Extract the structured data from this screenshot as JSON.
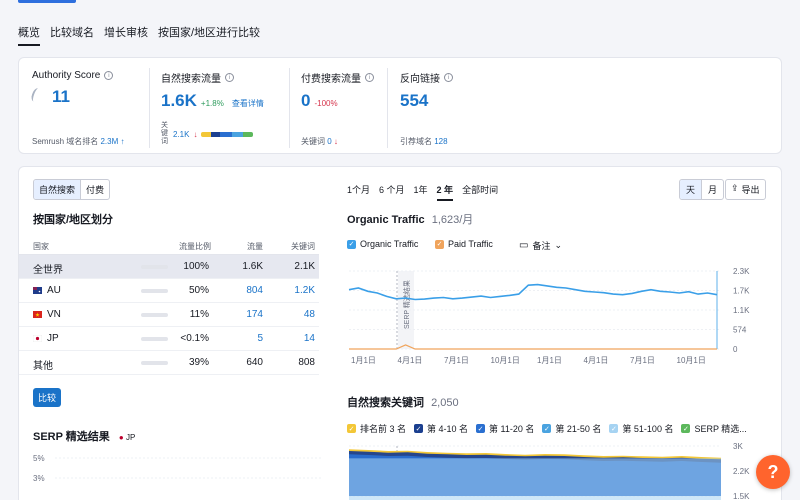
{
  "tabs": [
    "概览",
    "比较域名",
    "增长审核",
    "按国家/地区进行比较"
  ],
  "metrics": {
    "authority": {
      "label": "Authority Score",
      "value": "11",
      "foot_label": "Semrush 域名排名",
      "foot_value": "2.3M",
      "foot_arrow": "↑"
    },
    "organic": {
      "label": "自然搜索流量",
      "value": "1.6K",
      "delta": "+1.8%",
      "link": "查看详情",
      "kw_label": "关键词",
      "kw_value": "2.1K",
      "kw_arrow": "↓"
    },
    "paid": {
      "label": "付费搜索流量",
      "value": "0",
      "delta": "-100%",
      "foot_label": "关键词",
      "foot_value": "0",
      "foot_arrow": "↓"
    },
    "backlinks": {
      "label": "反向链接",
      "value": "554",
      "foot_label": "引荐域名",
      "foot_value": "128"
    }
  },
  "traffic_toggle": {
    "organic": "自然搜索",
    "paid": "付费"
  },
  "by_country_title": "按国家/地区划分",
  "table": {
    "headers": {
      "country": "国家",
      "share": "流量比例",
      "traffic": "流量",
      "keywords": "关键词"
    },
    "rows": [
      {
        "country": "全世界",
        "share": "100%",
        "share_value": 100,
        "traffic": "1.6K",
        "keywords": "2.1K"
      },
      {
        "country": "AU",
        "share": "50%",
        "share_value": 50,
        "traffic": "804",
        "keywords": "1.2K"
      },
      {
        "country": "VN",
        "share": "11%",
        "share_value": 11,
        "traffic": "174",
        "keywords": "48"
      },
      {
        "country": "JP",
        "share": "<0.1%",
        "share_value": 0.1,
        "traffic": "5",
        "keywords": "14"
      },
      {
        "country": "其他",
        "share": "39%",
        "share_value": 39,
        "traffic": "640",
        "keywords": "808"
      }
    ]
  },
  "compare_button": "比较",
  "serp": {
    "title": "SERP 精选结果",
    "country": "JP",
    "y_ticks": [
      "5%",
      "3%"
    ]
  },
  "periods": [
    "1个月",
    "6 个月",
    "1年",
    "2 年",
    "全部时间"
  ],
  "active_period": "2 年",
  "granularity": {
    "day": "天",
    "month": "月"
  },
  "export_label": "导出",
  "organic_traffic": {
    "title": "Organic Traffic",
    "value": "1,623/月",
    "legend": {
      "organic": "Organic Traffic",
      "paid": "Paid Traffic",
      "notes": "备注"
    },
    "annotation": "SERP 精选结果",
    "colors": {
      "organic": "#3a9fe8",
      "paid": "#f0a45c"
    }
  },
  "organic_keywords": {
    "title": "自然搜索关键词",
    "value": "2,050",
    "legend": [
      {
        "label": "排名前 3 名",
        "color": "#f3c737"
      },
      {
        "label": "第 4-10 名",
        "color": "#1b3f8f"
      },
      {
        "label": "第 11-20 名",
        "color": "#2a6fd0"
      },
      {
        "label": "第 21-50 名",
        "color": "#4aa3e0"
      },
      {
        "label": "第 51-100 名",
        "color": "#a6d3f2"
      },
      {
        "label": "SERP 精选...",
        "color": "#5cb85c"
      }
    ],
    "y_ticks": [
      "3K",
      "2.2K",
      "1.5K"
    ]
  },
  "chart_data": [
    {
      "type": "line",
      "title": "Organic Traffic",
      "x_ticks": [
        "1月1日",
        "4月1日",
        "7月1日",
        "10月1日",
        "1月1日",
        "4月1日",
        "7月1日",
        "10月1日"
      ],
      "y_ticks": [
        "2.3K",
        "1.7K",
        "1.1K",
        "574",
        "0"
      ],
      "ylim": [
        0,
        2300
      ],
      "series": [
        {
          "name": "Organic Traffic",
          "values": [
            1750,
            1800,
            1700,
            1650,
            1550,
            1480,
            1500,
            1460,
            1470,
            1500,
            1520,
            1480,
            1500,
            1530,
            1560,
            1520,
            1550,
            1580,
            1620,
            1880,
            1900,
            1860,
            1820,
            1800,
            1750,
            1700,
            1680,
            1660,
            1620,
            1600,
            1640,
            1700,
            1750,
            1700,
            1680,
            1650,
            1690,
            1620,
            1650,
            1600
          ]
        },
        {
          "name": "Paid Traffic",
          "values": [
            0,
            0,
            0,
            0,
            0,
            0,
            120,
            0,
            0,
            0,
            0,
            0,
            0,
            0,
            0,
            0,
            0,
            0,
            0,
            0,
            0,
            0,
            0,
            0,
            0,
            0,
            0,
            0,
            0,
            0,
            0,
            0,
            0,
            0,
            0,
            0,
            0,
            0,
            0,
            0
          ]
        }
      ]
    },
    {
      "type": "area",
      "title": "自然搜索关键词",
      "y_ticks": [
        "3K",
        "2.2K",
        "1.5K"
      ],
      "ylim": [
        1500,
        3000
      ],
      "series": [
        {
          "name": "排名前 3 名",
          "values": [
            2900,
            2880,
            2850,
            2860,
            2820,
            2800,
            2780,
            2790,
            2760,
            2740,
            2760,
            2750,
            2720,
            2700,
            2710,
            2690,
            2680,
            2700,
            2670,
            2650
          ]
        },
        {
          "name": "第 4-10 名",
          "values": [
            2850,
            2830,
            2800,
            2810,
            2770,
            2750,
            2730,
            2740,
            2710,
            2690,
            2710,
            2700,
            2670,
            2650,
            2660,
            2640,
            2630,
            2650,
            2620,
            2600
          ]
        },
        {
          "name": "第 11-20 名",
          "values": [
            2750,
            2730,
            2700,
            2710,
            2670,
            2650,
            2630,
            2640,
            2610,
            2590,
            2610,
            2600,
            2570,
            2550,
            2560,
            2540,
            2530,
            2550,
            2520,
            2500
          ]
        }
      ]
    }
  ]
}
